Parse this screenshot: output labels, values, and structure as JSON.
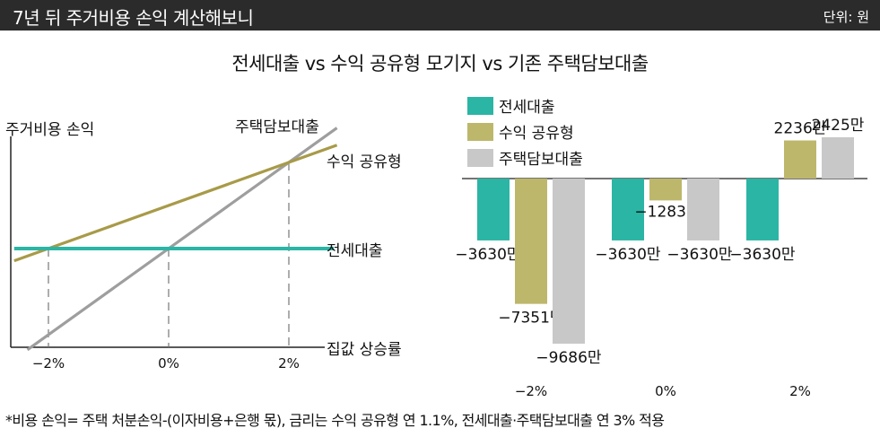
{
  "header": {
    "title": "7년 뒤 주거비용 손익 계산해보니",
    "unit": "단위: 원"
  },
  "subtitle": "전세대출 vs 수익 공유형 모기지 vs 기존 주택담보대출",
  "footnote": "*비용 손익= 주택 처분손익-(이자비용+은행 몫), 금리는 수익 공유형 연 1.1%, 전세대출·주택담보대출 연 3% 적용",
  "colors": {
    "jeonse": "#2bb5a5",
    "shared": "#bdb76b",
    "mortgage": "#c8c8c8",
    "shared_line": "#a89a48",
    "mortgage_line": "#9e9e9e"
  },
  "chart_data": [
    {
      "type": "line",
      "ylabel": "주거비용 손익",
      "xlabel": "집값 상승률",
      "x_ticks": [
        "−2%",
        "0%",
        "2%"
      ],
      "x": [
        -2,
        0,
        2
      ],
      "series": [
        {
          "name": "주택담보대출",
          "values": [
            -3,
            0,
            3
          ]
        },
        {
          "name": "수익 공유형",
          "values": [
            0,
            1.5,
            3
          ]
        },
        {
          "name": "전세대출",
          "values": [
            0,
            0,
            0
          ]
        }
      ],
      "grid": false
    },
    {
      "type": "bar",
      "categories": [
        "−2%",
        "0%",
        "2%"
      ],
      "legend": [
        "전세대출",
        "수익 공유형",
        "주택담보대출"
      ],
      "legend_position": "top-left",
      "series": [
        {
          "name": "전세대출",
          "values": [
            -3630,
            -3630,
            -3630
          ],
          "labels": [
            "−3630만",
            "−3630만",
            "−3630만"
          ]
        },
        {
          "name": "수익 공유형",
          "values": [
            -7351,
            -1283,
            2236
          ],
          "labels": [
            "−7351만",
            "−1283만",
            "2236만"
          ]
        },
        {
          "name": "주택담보대출",
          "values": [
            -9686,
            -3630,
            2425
          ],
          "labels": [
            "−9686만",
            "−3630만",
            "2425만"
          ]
        }
      ],
      "unit": "만원",
      "ylim": [
        -9686,
        2425
      ]
    }
  ]
}
